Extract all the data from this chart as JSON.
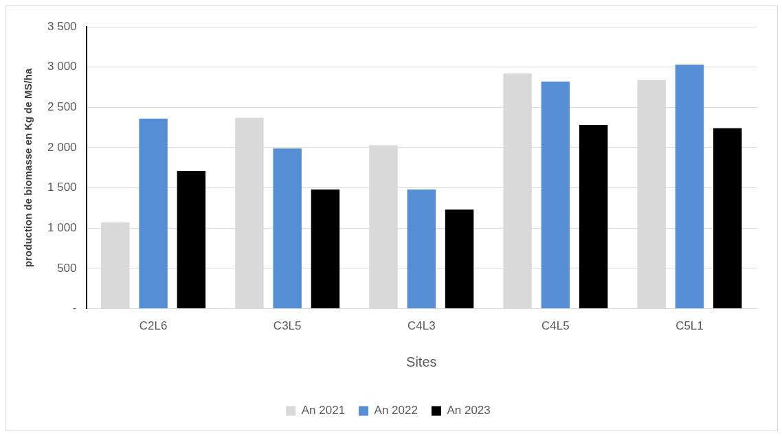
{
  "chart_data": {
    "type": "bar",
    "xlabel": "Sites",
    "ylabel": "production de biomasse en Kg de MS/ha",
    "categories": [
      "C2L6",
      "C3L5",
      "C4L3",
      "C4L5",
      "C5L1"
    ],
    "series": [
      {
        "name": "An 2021",
        "color": "#d9d9d9",
        "values": [
          1070,
          2370,
          2030,
          2920,
          2840
        ]
      },
      {
        "name": "An 2022",
        "color": "#558ed5",
        "values": [
          2360,
          1990,
          1480,
          2820,
          3030
        ]
      },
      {
        "name": "An 2023",
        "color": "#000000",
        "values": [
          1710,
          1480,
          1230,
          2280,
          2240
        ]
      }
    ],
    "ylim": [
      0,
      3500
    ],
    "yticks": [
      {
        "value": 0,
        "label": "-"
      },
      500,
      {
        "value": 1000,
        "label": "1 000"
      },
      {
        "value": 1500,
        "label": "1 500"
      },
      {
        "value": 2000,
        "label": "2 000"
      },
      {
        "value": 2500,
        "label": "2 500"
      },
      {
        "value": 3000,
        "label": "3 000"
      },
      {
        "value": 3500,
        "label": "3 500"
      }
    ],
    "grid": "y",
    "legend": "bottom"
  }
}
